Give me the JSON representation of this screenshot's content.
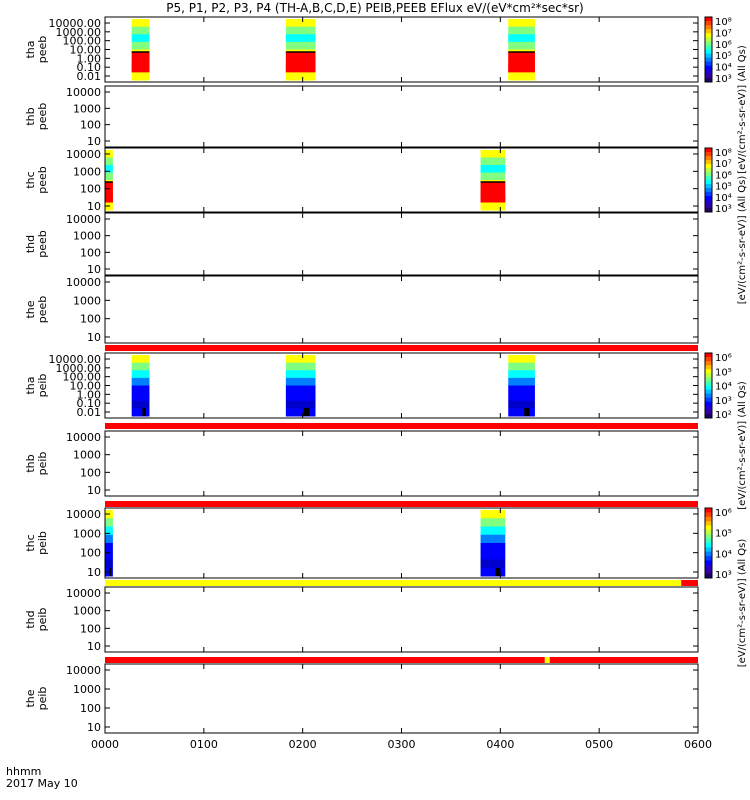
{
  "title": "P5, P1, P2, P3, P4 (TH-A,B,C,D,E) PEIB,PEEB EFlux eV/(eV*cm²*sec*sr)",
  "xaxis": {
    "label_line1": "hhmm",
    "label_line2": "2017 May 10",
    "ticks": [
      "0000",
      "0100",
      "0200",
      "0300",
      "0400",
      "0500",
      "0600"
    ],
    "range_hours": [
      0,
      6
    ]
  },
  "colors": {
    "red": "#ff0000",
    "yellow": "#ffff00",
    "black": "#000000"
  },
  "chart_data": [
    {
      "type": "heatmap",
      "id": "tha-peeb",
      "ylabel": [
        "tha",
        "peeb"
      ],
      "yticks": [
        "10000.00",
        "1000.00",
        "100.00",
        "10.00",
        "1.00",
        "0.10",
        "0.01"
      ],
      "data_intervals_hours": [
        [
          0.27,
          0.45
        ],
        [
          1.83,
          2.13
        ],
        [
          4.08,
          4.35
        ]
      ],
      "colorbar": {
        "ticks": [
          "10⁸",
          "10⁷",
          "10⁶",
          "10⁵",
          "10⁴",
          "10³"
        ],
        "label": "[eV/(cm²-s-sr-eV)] (All Qs)"
      }
    },
    {
      "type": "heatmap",
      "id": "thb-peeb",
      "ylabel": [
        "thb",
        "peeb"
      ],
      "yticks": [
        "10000",
        "1000",
        "100",
        "10"
      ],
      "data_intervals_hours": []
    },
    {
      "type": "heatmap",
      "id": "thc-peeb",
      "ylabel": [
        "thc",
        "peeb"
      ],
      "yticks": [
        "10000",
        "1000",
        "100",
        "10"
      ],
      "data_intervals_hours": [
        [
          0.0,
          0.08
        ],
        [
          3.8,
          4.05
        ]
      ],
      "colorbar": {
        "ticks": [
          "10⁸",
          "10⁷",
          "10⁶",
          "10⁵",
          "10⁴",
          "10³"
        ],
        "label": "[eV/(cm²-s-sr-eV)] (All Qs)"
      }
    },
    {
      "type": "heatmap",
      "id": "thd-peeb",
      "ylabel": [
        "thd",
        "peeb"
      ],
      "yticks": [
        "10000",
        "1000",
        "100",
        "10"
      ],
      "data_intervals_hours": []
    },
    {
      "type": "heatmap",
      "id": "the-peeb",
      "ylabel": [
        "the",
        "peeb"
      ],
      "yticks": [
        "10000",
        "1000",
        "100",
        "10"
      ],
      "data_intervals_hours": []
    },
    {
      "type": "heatmap",
      "id": "tha-peib",
      "ylabel": [
        "tha",
        "peib"
      ],
      "yticks": [
        "10000.00",
        "1000.00",
        "100.00",
        "10.00",
        "1.00",
        "0.10",
        "0.01"
      ],
      "data_intervals_hours": [
        [
          0.27,
          0.45
        ],
        [
          1.83,
          2.13
        ],
        [
          4.08,
          4.35
        ]
      ],
      "colorbar": {
        "ticks": [
          "10⁶",
          "10⁵",
          "10⁴",
          "10³",
          "10²"
        ],
        "label": "[eV/(cm²-s-sr-eV)] (All Qs)"
      }
    },
    {
      "type": "heatmap",
      "id": "thb-peib",
      "ylabel": [
        "thb",
        "peib"
      ],
      "yticks": [
        "10000",
        "1000",
        "100",
        "10"
      ],
      "data_intervals_hours": []
    },
    {
      "type": "heatmap",
      "id": "thc-peib",
      "ylabel": [
        "thc",
        "peib"
      ],
      "yticks": [
        "10000",
        "1000",
        "100",
        "10"
      ],
      "data_intervals_hours": [
        [
          0.0,
          0.08
        ],
        [
          3.8,
          4.05
        ]
      ],
      "colorbar": {
        "ticks": [
          "10⁶",
          "10⁵",
          "10⁴",
          "10³"
        ],
        "label": "[eV/(cm²-s-sr-eV)] (All Qs)"
      }
    },
    {
      "type": "heatmap",
      "id": "thd-peib",
      "ylabel": [
        "thd",
        "peib"
      ],
      "yticks": [
        "10000",
        "1000",
        "100",
        "10"
      ],
      "data_intervals_hours": []
    },
    {
      "type": "heatmap",
      "id": "the-peib",
      "ylabel": [
        "the",
        "peib"
      ],
      "yticks": [
        "10000",
        "1000",
        "100",
        "10"
      ],
      "data_intervals_hours": []
    }
  ],
  "status_bars": [
    {
      "segments": [
        {
          "from": 0,
          "to": 6,
          "color": "red"
        }
      ]
    },
    {
      "segments": [
        {
          "from": 0,
          "to": 6,
          "color": "red"
        }
      ]
    },
    {
      "segments": [
        {
          "from": 0,
          "to": 6,
          "color": "red"
        }
      ]
    },
    {
      "segments": [
        {
          "from": 0,
          "to": 5.83,
          "color": "yellow"
        },
        {
          "from": 5.83,
          "to": 6,
          "color": "red"
        }
      ]
    },
    {
      "segments": [
        {
          "from": 0,
          "to": 4.45,
          "color": "red"
        },
        {
          "from": 4.45,
          "to": 4.5,
          "color": "yellow"
        },
        {
          "from": 4.5,
          "to": 6,
          "color": "red"
        }
      ]
    }
  ]
}
